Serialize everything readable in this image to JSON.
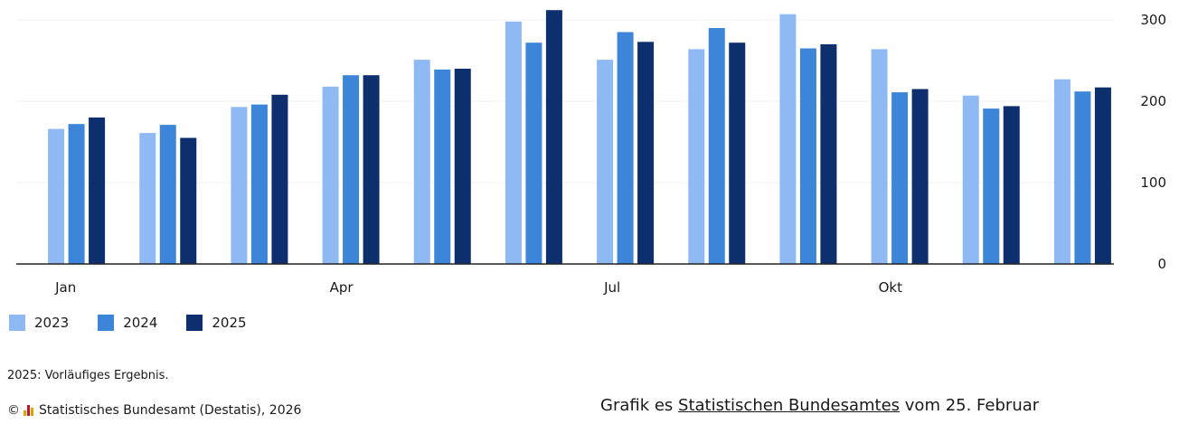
{
  "chart_data": {
    "type": "bar",
    "categories": [
      "Jan",
      "",
      "",
      "Apr",
      "",
      "",
      "Jul",
      "",
      "",
      "Okt",
      "",
      ""
    ],
    "series": [
      {
        "name": "2023",
        "color": "#8fb9f2",
        "values": [
          166,
          161,
          193,
          218,
          251,
          298,
          251,
          264,
          307,
          264,
          207,
          227
        ]
      },
      {
        "name": "2024",
        "color": "#3c85d9",
        "values": [
          172,
          171,
          196,
          232,
          239,
          272,
          285,
          290,
          265,
          211,
          191,
          212
        ]
      },
      {
        "name": "2025",
        "color": "#0d2f6e",
        "values": [
          180,
          155,
          208,
          232,
          240,
          312,
          273,
          272,
          270,
          215,
          194,
          217
        ]
      }
    ],
    "ylim": [
      0,
      320
    ],
    "yticks": [
      0,
      100,
      200,
      300
    ],
    "y_axis_position": "right",
    "grid": true,
    "legend_position": "bottom-left"
  },
  "legend": [
    {
      "label": "2023",
      "color": "#8fb9f2"
    },
    {
      "label": "2024",
      "color": "#3c85d9"
    },
    {
      "label": "2025",
      "color": "#0d2f6e"
    }
  ],
  "footnote": "2025: Vorläufiges Ergebnis.",
  "copyright": "Statistisches Bundesamt (Destatis), 2026",
  "copyright_symbol": "©",
  "caption": {
    "prefix": "Grafik es ",
    "link": "Statistischen Bundesamtes",
    "suffix": " vom 25. Februar"
  }
}
